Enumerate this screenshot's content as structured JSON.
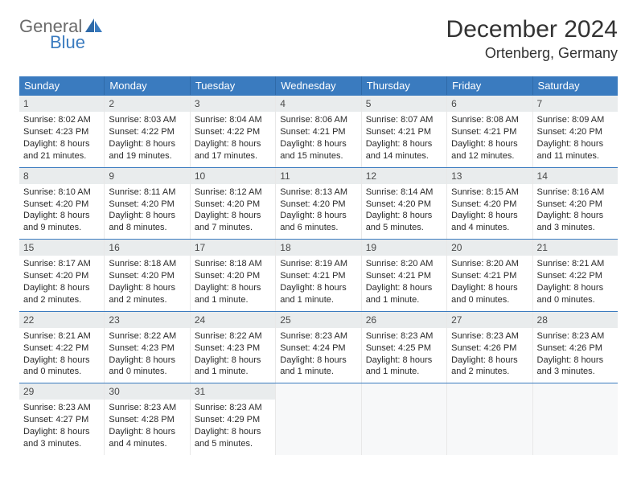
{
  "brand": {
    "part1": "General",
    "part2": "Blue"
  },
  "title": "December 2024",
  "location": "Ortenberg, Germany",
  "colors": {
    "header_bg": "#3a7bbf",
    "header_text": "#ffffff",
    "daynum_bg": "#e9eced",
    "week_divider": "#3a7bbf",
    "logo_gray": "#6b6b6b",
    "logo_blue": "#3a7bbf"
  },
  "weekdays": [
    "Sunday",
    "Monday",
    "Tuesday",
    "Wednesday",
    "Thursday",
    "Friday",
    "Saturday"
  ],
  "weeks": [
    [
      {
        "num": "1",
        "sunrise": "Sunrise: 8:02 AM",
        "sunset": "Sunset: 4:23 PM",
        "daylight": "Daylight: 8 hours and 21 minutes."
      },
      {
        "num": "2",
        "sunrise": "Sunrise: 8:03 AM",
        "sunset": "Sunset: 4:22 PM",
        "daylight": "Daylight: 8 hours and 19 minutes."
      },
      {
        "num": "3",
        "sunrise": "Sunrise: 8:04 AM",
        "sunset": "Sunset: 4:22 PM",
        "daylight": "Daylight: 8 hours and 17 minutes."
      },
      {
        "num": "4",
        "sunrise": "Sunrise: 8:06 AM",
        "sunset": "Sunset: 4:21 PM",
        "daylight": "Daylight: 8 hours and 15 minutes."
      },
      {
        "num": "5",
        "sunrise": "Sunrise: 8:07 AM",
        "sunset": "Sunset: 4:21 PM",
        "daylight": "Daylight: 8 hours and 14 minutes."
      },
      {
        "num": "6",
        "sunrise": "Sunrise: 8:08 AM",
        "sunset": "Sunset: 4:21 PM",
        "daylight": "Daylight: 8 hours and 12 minutes."
      },
      {
        "num": "7",
        "sunrise": "Sunrise: 8:09 AM",
        "sunset": "Sunset: 4:20 PM",
        "daylight": "Daylight: 8 hours and 11 minutes."
      }
    ],
    [
      {
        "num": "8",
        "sunrise": "Sunrise: 8:10 AM",
        "sunset": "Sunset: 4:20 PM",
        "daylight": "Daylight: 8 hours and 9 minutes."
      },
      {
        "num": "9",
        "sunrise": "Sunrise: 8:11 AM",
        "sunset": "Sunset: 4:20 PM",
        "daylight": "Daylight: 8 hours and 8 minutes."
      },
      {
        "num": "10",
        "sunrise": "Sunrise: 8:12 AM",
        "sunset": "Sunset: 4:20 PM",
        "daylight": "Daylight: 8 hours and 7 minutes."
      },
      {
        "num": "11",
        "sunrise": "Sunrise: 8:13 AM",
        "sunset": "Sunset: 4:20 PM",
        "daylight": "Daylight: 8 hours and 6 minutes."
      },
      {
        "num": "12",
        "sunrise": "Sunrise: 8:14 AM",
        "sunset": "Sunset: 4:20 PM",
        "daylight": "Daylight: 8 hours and 5 minutes."
      },
      {
        "num": "13",
        "sunrise": "Sunrise: 8:15 AM",
        "sunset": "Sunset: 4:20 PM",
        "daylight": "Daylight: 8 hours and 4 minutes."
      },
      {
        "num": "14",
        "sunrise": "Sunrise: 8:16 AM",
        "sunset": "Sunset: 4:20 PM",
        "daylight": "Daylight: 8 hours and 3 minutes."
      }
    ],
    [
      {
        "num": "15",
        "sunrise": "Sunrise: 8:17 AM",
        "sunset": "Sunset: 4:20 PM",
        "daylight": "Daylight: 8 hours and 2 minutes."
      },
      {
        "num": "16",
        "sunrise": "Sunrise: 8:18 AM",
        "sunset": "Sunset: 4:20 PM",
        "daylight": "Daylight: 8 hours and 2 minutes."
      },
      {
        "num": "17",
        "sunrise": "Sunrise: 8:18 AM",
        "sunset": "Sunset: 4:20 PM",
        "daylight": "Daylight: 8 hours and 1 minute."
      },
      {
        "num": "18",
        "sunrise": "Sunrise: 8:19 AM",
        "sunset": "Sunset: 4:21 PM",
        "daylight": "Daylight: 8 hours and 1 minute."
      },
      {
        "num": "19",
        "sunrise": "Sunrise: 8:20 AM",
        "sunset": "Sunset: 4:21 PM",
        "daylight": "Daylight: 8 hours and 1 minute."
      },
      {
        "num": "20",
        "sunrise": "Sunrise: 8:20 AM",
        "sunset": "Sunset: 4:21 PM",
        "daylight": "Daylight: 8 hours and 0 minutes."
      },
      {
        "num": "21",
        "sunrise": "Sunrise: 8:21 AM",
        "sunset": "Sunset: 4:22 PM",
        "daylight": "Daylight: 8 hours and 0 minutes."
      }
    ],
    [
      {
        "num": "22",
        "sunrise": "Sunrise: 8:21 AM",
        "sunset": "Sunset: 4:22 PM",
        "daylight": "Daylight: 8 hours and 0 minutes."
      },
      {
        "num": "23",
        "sunrise": "Sunrise: 8:22 AM",
        "sunset": "Sunset: 4:23 PM",
        "daylight": "Daylight: 8 hours and 0 minutes."
      },
      {
        "num": "24",
        "sunrise": "Sunrise: 8:22 AM",
        "sunset": "Sunset: 4:23 PM",
        "daylight": "Daylight: 8 hours and 1 minute."
      },
      {
        "num": "25",
        "sunrise": "Sunrise: 8:23 AM",
        "sunset": "Sunset: 4:24 PM",
        "daylight": "Daylight: 8 hours and 1 minute."
      },
      {
        "num": "26",
        "sunrise": "Sunrise: 8:23 AM",
        "sunset": "Sunset: 4:25 PM",
        "daylight": "Daylight: 8 hours and 1 minute."
      },
      {
        "num": "27",
        "sunrise": "Sunrise: 8:23 AM",
        "sunset": "Sunset: 4:26 PM",
        "daylight": "Daylight: 8 hours and 2 minutes."
      },
      {
        "num": "28",
        "sunrise": "Sunrise: 8:23 AM",
        "sunset": "Sunset: 4:26 PM",
        "daylight": "Daylight: 8 hours and 3 minutes."
      }
    ],
    [
      {
        "num": "29",
        "sunrise": "Sunrise: 8:23 AM",
        "sunset": "Sunset: 4:27 PM",
        "daylight": "Daylight: 8 hours and 3 minutes."
      },
      {
        "num": "30",
        "sunrise": "Sunrise: 8:23 AM",
        "sunset": "Sunset: 4:28 PM",
        "daylight": "Daylight: 8 hours and 4 minutes."
      },
      {
        "num": "31",
        "sunrise": "Sunrise: 8:23 AM",
        "sunset": "Sunset: 4:29 PM",
        "daylight": "Daylight: 8 hours and 5 minutes."
      },
      {
        "empty": true
      },
      {
        "empty": true
      },
      {
        "empty": true
      },
      {
        "empty": true
      }
    ]
  ]
}
